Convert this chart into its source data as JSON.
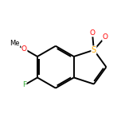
{
  "background_color": "#ffffff",
  "bond_color": "#000000",
  "atom_colors": {
    "S": "#ffaa00",
    "O": "#ff0000",
    "F": "#33aa33",
    "C": "#000000",
    "Me": "#000000"
  },
  "figsize": [
    1.52,
    1.52
  ],
  "dpi": 100,
  "line_width": 1.4,
  "font_size_S": 7,
  "font_size_atom": 6.5,
  "font_size_me": 6.0
}
